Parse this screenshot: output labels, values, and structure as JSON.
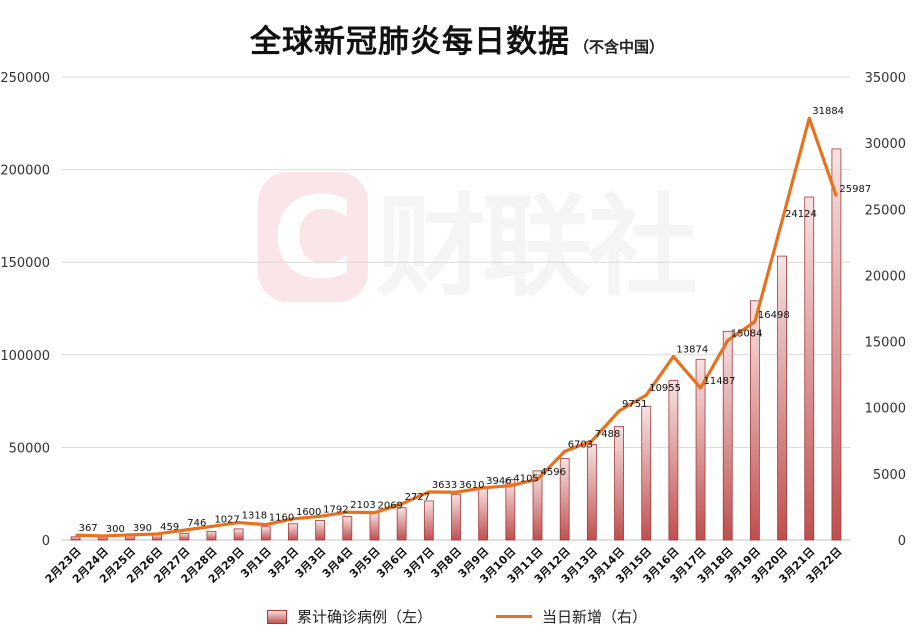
{
  "title": {
    "main": "全球新冠肺炎每日数据",
    "sub": "（不含中国）"
  },
  "watermark": {
    "text": "财联社",
    "logo": "C"
  },
  "legend": {
    "bar_label": "累计确诊病例（左）",
    "line_label": "当日新增（右）"
  },
  "chart_data": {
    "type": "bar+line",
    "categories": [
      "2月23日",
      "2月24日",
      "2月25日",
      "2月26日",
      "2月27日",
      "2月28日",
      "2月29日",
      "3月1日",
      "3月2日",
      "3月3日",
      "3月4日",
      "3月5日",
      "3月6日",
      "3月7日",
      "3月8日",
      "3月9日",
      "3月10日",
      "3月11日",
      "3月12日",
      "3月13日",
      "3月14日",
      "3月15日",
      "3月16日",
      "3月17日",
      "3月18日",
      "3月19日",
      "3月20日",
      "3月21日",
      "3月22日"
    ],
    "series": [
      {
        "name": "累计确诊病例（左）",
        "type": "bar",
        "axis": "left",
        "color": "#c05555",
        "values": [
          1747,
          2047,
          2437,
          2896,
          3642,
          4669,
          5987,
          7147,
          8747,
          10539,
          12642,
          14711,
          17438,
          21071,
          24681,
          28627,
          32732,
          37328,
          44031,
          51519,
          61270,
          72225,
          86099,
          97586,
          112670,
          129168,
          153292,
          185176,
          211163
        ]
      },
      {
        "name": "当日新增（右）",
        "type": "line",
        "axis": "right",
        "color": "#e8711f",
        "values": [
          367,
          300,
          390,
          459,
          746,
          1027,
          1318,
          1160,
          1600,
          1792,
          2103,
          2069,
          2727,
          3633,
          3610,
          3946,
          4105,
          4596,
          6703,
          7488,
          9751,
          10955,
          13874,
          11487,
          15084,
          16498,
          24124,
          31884,
          25987
        ],
        "data_labels": [
          "367",
          "300",
          "390",
          "459",
          "746",
          "1027",
          "1318",
          "1160",
          "1600",
          "1792",
          "2103",
          "2069",
          "2727",
          "3633",
          "3610",
          "3946",
          "4105",
          "4596",
          "6703",
          "7488",
          "9751",
          "10955",
          "13874",
          "11487",
          "15084",
          "16498",
          "24124",
          "31884",
          "25987"
        ]
      }
    ],
    "y_left": {
      "min": 0,
      "max": 250000,
      "ticks": [
        "0",
        "50000",
        "100000",
        "150000",
        "200000",
        "250000"
      ]
    },
    "y_right": {
      "min": 0,
      "max": 35000,
      "ticks": [
        "0",
        "5000",
        "10000",
        "15000",
        "20000",
        "25000",
        "30000",
        "35000"
      ]
    },
    "grid": true,
    "legend_position": "bottom"
  }
}
